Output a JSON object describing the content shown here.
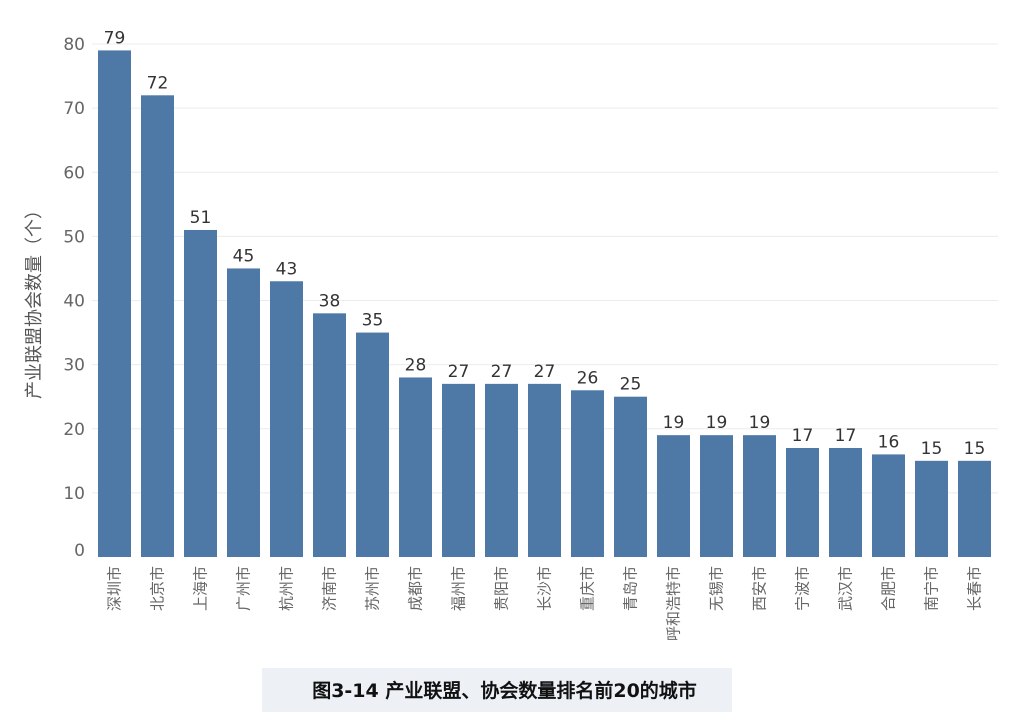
{
  "chart_data": {
    "type": "bar",
    "ylabel": "产业联盟协会数量（个）",
    "ylim": [
      0,
      80
    ],
    "yticks": [
      0,
      10,
      20,
      30,
      40,
      50,
      60,
      70,
      80
    ],
    "grid": true,
    "categories": [
      "深圳市",
      "北京市",
      "上海市",
      "广州市",
      "杭州市",
      "济南市",
      "苏州市",
      "成都市",
      "福州市",
      "贵阳市",
      "长沙市",
      "重庆市",
      "青岛市",
      "呼和浩特市",
      "无锡市",
      "西安市",
      "宁波市",
      "武汉市",
      "合肥市",
      "南宁市",
      "长春市"
    ],
    "values": [
      79,
      72,
      51,
      45,
      43,
      38,
      35,
      28,
      27,
      27,
      27,
      26,
      25,
      19,
      19,
      19,
      17,
      17,
      16,
      15,
      15
    ],
    "colors": {
      "bar": "#4e79a7",
      "grid": "#ececec",
      "tick": "#666666",
      "label": "#333333"
    }
  },
  "caption": "图3-14 产业联盟、协会数量排名前20的城市"
}
